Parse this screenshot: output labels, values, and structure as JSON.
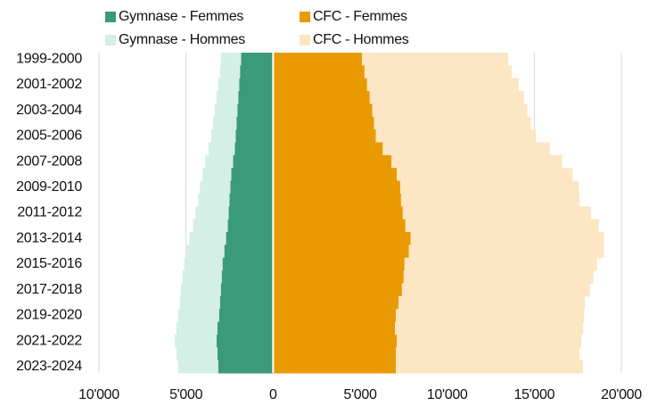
{
  "chart_data": {
    "type": "bar",
    "orientation": "horizontal",
    "stacked": true,
    "categories": [
      "1999-2000",
      null,
      "2001-2002",
      null,
      "2003-2004",
      null,
      "2005-2006",
      null,
      "2007-2008",
      null,
      "2009-2010",
      null,
      "2011-2012",
      null,
      "2013-2014",
      null,
      "2015-2016",
      null,
      "2017-2018",
      null,
      "2019-2020",
      null,
      "2021-2022",
      null,
      "2023-2024"
    ],
    "series": [
      {
        "name": "Gymnase - Femmes",
        "color": "#3a9a7a",
        "values": [
          -1840,
          -1900,
          -1950,
          -2000,
          -2050,
          -2100,
          -2150,
          -2200,
          -2300,
          -2400,
          -2450,
          -2500,
          -2550,
          -2600,
          -2700,
          -2800,
          -2900,
          -2950,
          -3000,
          -3050,
          -3100,
          -3200,
          -3250,
          -3200,
          -3150
        ]
      },
      {
        "name": "Gymnase - Hommes",
        "color": "#d4efe6",
        "values": [
          -1160,
          -1150,
          -1200,
          -1250,
          -1300,
          -1350,
          -1400,
          -1500,
          -1600,
          -1650,
          -1750,
          -1800,
          -1900,
          -2000,
          -2100,
          -2150,
          -2200,
          -2250,
          -2300,
          -2300,
          -2350,
          -2350,
          -2400,
          -2350,
          -2300
        ]
      },
      {
        "name": "CFC - Femmes",
        "color": "#e89a00",
        "values": [
          5100,
          5250,
          5400,
          5550,
          5700,
          5800,
          5900,
          6300,
          6800,
          7100,
          7300,
          7350,
          7450,
          7600,
          7900,
          7800,
          7550,
          7500,
          7400,
          7200,
          7050,
          7000,
          7100,
          7050,
          7050
        ]
      },
      {
        "name": "CFC - Hommes",
        "color": "#fde6c4",
        "values": [
          8400,
          8450,
          8700,
          8850,
          8900,
          9000,
          9200,
          9600,
          9800,
          10100,
          10250,
          10250,
          10800,
          11100,
          11100,
          11200,
          11050,
          10900,
          10800,
          10700,
          10800,
          10800,
          10600,
          10550,
          10750
        ]
      }
    ],
    "xlim": [
      -10000,
      20000
    ],
    "xticks": [
      {
        "value": -10000,
        "label": "10'000"
      },
      {
        "value": -5000,
        "label": "5'000"
      },
      0,
      {
        "value": 5000,
        "label": "5'000"
      },
      {
        "value": 10000,
        "label": "10'000"
      },
      {
        "value": 15000,
        "label": "15'000"
      },
      {
        "value": 20000,
        "label": "20'000"
      }
    ],
    "grid": true
  }
}
